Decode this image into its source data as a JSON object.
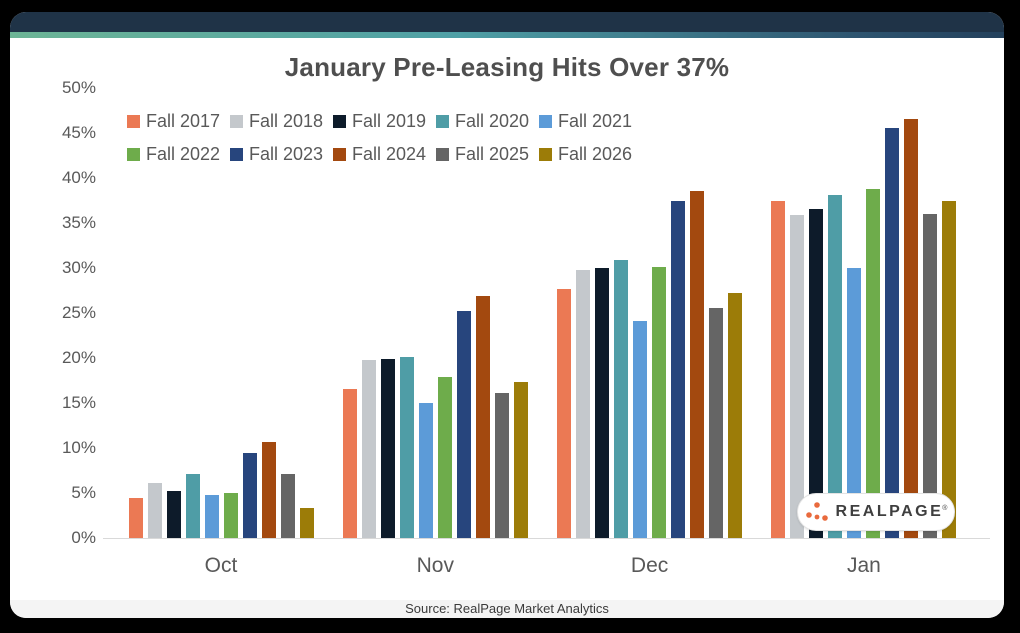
{
  "chart_data": {
    "type": "bar",
    "title": "January Pre-Leasing Hits Over 37%",
    "categories": [
      "Oct",
      "Nov",
      "Dec",
      "Jan"
    ],
    "series": [
      {
        "name": "Fall 2017",
        "color": "#EB7954",
        "values": [
          4.4,
          16.6,
          27.7,
          37.5
        ]
      },
      {
        "name": "Fall 2018",
        "color": "#C4C8CC",
        "values": [
          6.1,
          19.8,
          29.8,
          35.9
        ]
      },
      {
        "name": "Fall 2019",
        "color": "#0D1B2A",
        "values": [
          5.2,
          19.9,
          30.0,
          36.6
        ]
      },
      {
        "name": "Fall 2020",
        "color": "#4F9DA6",
        "values": [
          7.1,
          20.1,
          30.9,
          38.1
        ]
      },
      {
        "name": "Fall 2021",
        "color": "#5C9BD8",
        "values": [
          4.8,
          15.0,
          24.1,
          30.0
        ]
      },
      {
        "name": "Fall 2022",
        "color": "#6EAC4B",
        "values": [
          5.0,
          17.9,
          30.1,
          38.8
        ]
      },
      {
        "name": "Fall 2023",
        "color": "#27457D",
        "values": [
          9.4,
          25.2,
          37.5,
          45.6
        ]
      },
      {
        "name": "Fall 2024",
        "color": "#A3490F",
        "values": [
          10.7,
          26.9,
          38.6,
          46.6
        ]
      },
      {
        "name": "Fall 2025",
        "color": "#656565",
        "values": [
          7.1,
          16.1,
          25.6,
          36.0
        ]
      },
      {
        "name": "Fall 2026",
        "color": "#9C7C08",
        "values": [
          3.3,
          17.3,
          27.2,
          37.4
        ]
      }
    ],
    "y_ticks": [
      0,
      5,
      10,
      15,
      20,
      25,
      30,
      35,
      40,
      45,
      50
    ],
    "y_tick_suffix": "%",
    "ylim": [
      0,
      50
    ],
    "grid": false,
    "legend_position": "top-left, two rows of five"
  },
  "logo": {
    "text": "REALPAGE",
    "mark": "®",
    "dots_icon": "realpage-dots-icon",
    "dot_color": "#E96A3D"
  },
  "footer": {
    "source_text": "Source: RealPage Market Analytics"
  },
  "theme": {
    "header_bar_color": "#1F3347",
    "accent_gradient_start": "#6DB596",
    "accent_gradient_end": "#24415C",
    "title_color": "#4F4F4F",
    "axis_label_color": "#595959",
    "background": "#FFFFFF",
    "outer_background": "#000000"
  }
}
